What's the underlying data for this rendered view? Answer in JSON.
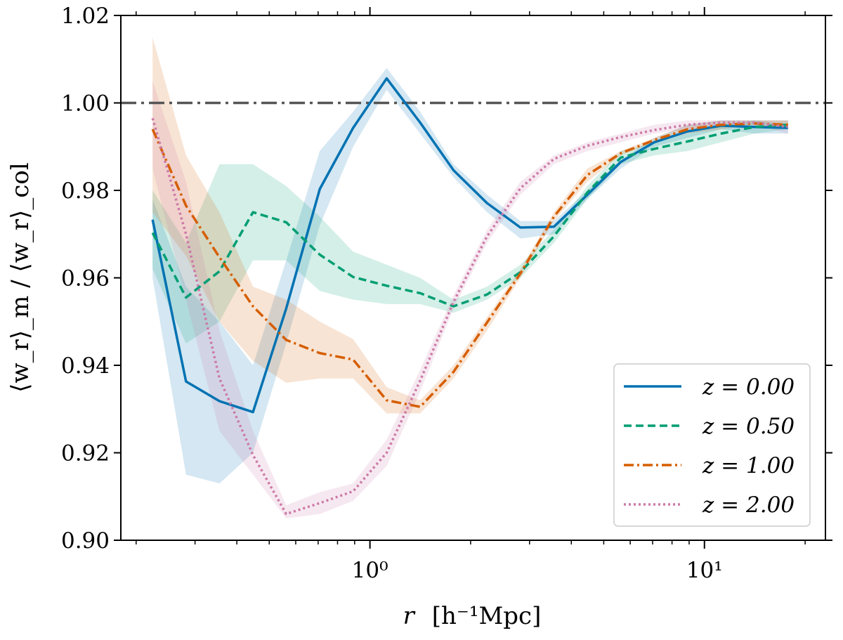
{
  "chart_data": {
    "type": "line",
    "xscale": "log",
    "xlim": [
      0.18,
      23
    ],
    "ylim": [
      0.9,
      1.02
    ],
    "xlabel_var": "r",
    "xlabel_unit": "[h⁻¹Mpc]",
    "ylabel": "⟨w_r⟩_m / ⟨w_r⟩_col",
    "yticks": [
      "0.90",
      "0.92",
      "0.94",
      "0.96",
      "0.98",
      "1.00",
      "1.02"
    ],
    "xticks": [
      "10⁰",
      "10¹"
    ],
    "reference_line": {
      "y": 1.0,
      "style": "dashdot",
      "color": "#555555"
    },
    "legend_position": "bottom-right",
    "x": [
      0.224,
      0.282,
      0.355,
      0.447,
      0.562,
      0.708,
      0.891,
      1.122,
      1.413,
      1.778,
      2.239,
      2.818,
      3.548,
      4.467,
      5.623,
      7.079,
      8.913,
      11.22,
      14.13,
      17.78
    ],
    "series": [
      {
        "name": "z = 0.00",
        "color": "#0072B2",
        "style": "solid",
        "values": [
          0.9733,
          0.9363,
          0.9318,
          0.9293,
          0.953,
          0.9803,
          0.9943,
          1.0056,
          0.9955,
          0.9846,
          0.9771,
          0.9715,
          0.9717,
          0.979,
          0.9865,
          0.991,
          0.9935,
          0.9948,
          0.9945,
          0.9943
        ],
        "band_lower": [
          0.96,
          0.915,
          0.913,
          0.92,
          0.945,
          0.972,
          0.99,
          1.003,
          0.993,
          0.983,
          0.975,
          0.969,
          0.97,
          0.978,
          0.985,
          0.99,
          0.992,
          0.994,
          0.993,
          0.993
        ],
        "band_upper": [
          0.978,
          0.958,
          0.95,
          0.94,
          0.964,
          0.989,
          0.998,
          1.008,
          0.998,
          0.986,
          0.979,
          0.973,
          0.973,
          0.98,
          0.987,
          0.992,
          0.995,
          0.996,
          0.996,
          0.995
        ]
      },
      {
        "name": "z = 0.50",
        "color": "#009E73",
        "style": "dashed",
        "values": [
          0.9703,
          0.9555,
          0.9615,
          0.975,
          0.9727,
          0.9653,
          0.9602,
          0.9582,
          0.9565,
          0.9535,
          0.9562,
          0.9613,
          0.9695,
          0.9795,
          0.9875,
          0.9895,
          0.9912,
          0.993,
          0.9945,
          0.995
        ],
        "band_lower": [
          0.962,
          0.945,
          0.95,
          0.964,
          0.964,
          0.957,
          0.955,
          0.954,
          0.954,
          0.952,
          0.955,
          0.96,
          0.968,
          0.978,
          0.986,
          0.988,
          0.989,
          0.991,
          0.993,
          0.994
        ],
        "band_upper": [
          0.98,
          0.968,
          0.986,
          0.986,
          0.981,
          0.974,
          0.966,
          0.963,
          0.96,
          0.955,
          0.958,
          0.963,
          0.971,
          0.981,
          0.989,
          0.991,
          0.993,
          0.995,
          0.996,
          0.996
        ]
      },
      {
        "name": "z = 1.00",
        "color": "#D55E00",
        "style": "dashdot",
        "values": [
          0.994,
          0.9765,
          0.9647,
          0.9535,
          0.9458,
          0.9428,
          0.9413,
          0.932,
          0.9305,
          0.9385,
          0.9498,
          0.961,
          0.974,
          0.9835,
          0.9885,
          0.9915,
          0.994,
          0.995,
          0.9953,
          0.995
        ],
        "band_lower": [
          0.975,
          0.965,
          0.95,
          0.941,
          0.936,
          0.937,
          0.937,
          0.929,
          0.929,
          0.937,
          0.948,
          0.96,
          0.973,
          0.982,
          0.988,
          0.991,
          0.993,
          0.994,
          0.995,
          0.994
        ],
        "band_upper": [
          1.015,
          0.988,
          0.975,
          0.958,
          0.955,
          0.95,
          0.946,
          0.935,
          0.932,
          0.94,
          0.951,
          0.962,
          0.975,
          0.985,
          0.989,
          0.992,
          0.995,
          0.996,
          0.996,
          0.996
        ]
      },
      {
        "name": "z = 2.00",
        "color": "#CC79A7",
        "style": "dotted",
        "values": [
          0.9965,
          0.97,
          0.937,
          0.9195,
          0.906,
          0.9085,
          0.9112,
          0.92,
          0.9365,
          0.9545,
          0.9695,
          0.9805,
          0.9872,
          0.9902,
          0.9922,
          0.9938,
          0.995,
          0.9955,
          0.9955,
          0.9945
        ],
        "band_lower": [
          0.985,
          0.955,
          0.925,
          0.915,
          0.905,
          0.906,
          0.909,
          0.917,
          0.934,
          0.953,
          0.968,
          0.979,
          0.986,
          0.989,
          0.991,
          0.993,
          0.994,
          0.995,
          0.995,
          0.993
        ],
        "band_upper": [
          1.005,
          0.982,
          0.948,
          0.925,
          0.908,
          0.911,
          0.913,
          0.923,
          0.939,
          0.956,
          0.971,
          0.982,
          0.988,
          0.991,
          0.993,
          0.995,
          0.996,
          0.996,
          0.996,
          0.996
        ]
      }
    ]
  }
}
